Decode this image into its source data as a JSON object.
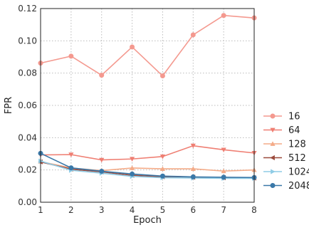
{
  "chart_data": {
    "type": "line",
    "xlabel": "Epoch",
    "ylabel": "FPR",
    "x": [
      1,
      2,
      3,
      4,
      5,
      6,
      7,
      8
    ],
    "xlim": [
      1,
      8
    ],
    "ylim": [
      0,
      0.12
    ],
    "xticks": [
      "1",
      "2",
      "3",
      "4",
      "5",
      "6",
      "7",
      "8"
    ],
    "yticks": [
      "0.00",
      "0.02",
      "0.04",
      "0.06",
      "0.08",
      "0.10",
      "0.12"
    ],
    "grid": true,
    "legend_position": "right",
    "series": [
      {
        "name": "16",
        "marker": "circle",
        "color": "#f4998f",
        "values": [
          0.0862,
          0.0905,
          0.0787,
          0.0962,
          0.0783,
          0.1037,
          0.1157,
          0.1142
        ]
      },
      {
        "name": "64",
        "marker": "triangle-down",
        "color": "#ef7f73",
        "values": [
          0.0293,
          0.0295,
          0.0262,
          0.0268,
          0.0283,
          0.035,
          0.0325,
          0.0305
        ]
      },
      {
        "name": "128",
        "marker": "triangle-up",
        "color": "#f4ab88",
        "values": [
          0.0252,
          0.0212,
          0.0196,
          0.0212,
          0.0207,
          0.0207,
          0.0193,
          0.02
        ]
      },
      {
        "name": "512",
        "marker": "triangle-left",
        "color": "#9b4a3c",
        "values": [
          0.025,
          0.0205,
          0.0188,
          0.0167,
          0.0158,
          0.0155,
          0.0152,
          0.015
        ]
      },
      {
        "name": "1024",
        "marker": "triangle-right",
        "color": "#8fcce6",
        "values": [
          0.0255,
          0.0198,
          0.018,
          0.016,
          0.0152,
          0.015,
          0.0148,
          0.0148
        ]
      },
      {
        "name": "2048",
        "marker": "circle",
        "color": "#3a78a8",
        "values": [
          0.0303,
          0.0213,
          0.0192,
          0.0175,
          0.0162,
          0.0157,
          0.0155,
          0.0153
        ]
      }
    ]
  }
}
